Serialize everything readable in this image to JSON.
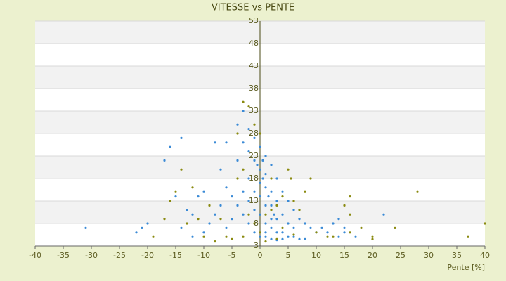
{
  "chart_data": {
    "type": "scatter",
    "title": "VITESSE vs PENTE",
    "x_label": "Pente [%]",
    "xlim": [
      -40,
      40
    ],
    "xticks": [
      -40,
      -35,
      -30,
      -25,
      -20,
      -15,
      -10,
      -5,
      0,
      5,
      10,
      15,
      20,
      25,
      30,
      35,
      40
    ],
    "ylim": [
      3,
      53
    ],
    "yticks": [
      3,
      8,
      13,
      18,
      23,
      28,
      33,
      38,
      43,
      48,
      53
    ],
    "grid": true,
    "series": [
      {
        "name": "Bleu",
        "color": "#3a8ad6",
        "x": [
          0,
          0.5,
          1,
          1.5,
          2,
          2.5,
          3,
          0,
          -1,
          -2,
          -3,
          -2,
          -1,
          0,
          1,
          2,
          3,
          4,
          5,
          6,
          7,
          8,
          0,
          1,
          2,
          3,
          -1,
          -2,
          -3,
          -4,
          -5,
          -6,
          -7,
          -8,
          -9,
          -10,
          -12,
          -13,
          -15,
          -14,
          -16,
          -17,
          -20,
          -22,
          -31,
          -21,
          -14,
          -11,
          -7,
          -4,
          -3,
          -2,
          -1,
          0,
          1,
          2,
          3,
          4,
          5,
          6,
          7,
          8,
          9,
          10,
          11,
          12,
          14,
          15,
          17,
          22,
          14,
          15,
          13,
          -5,
          -6,
          -3,
          4,
          5,
          6,
          1,
          2,
          3,
          -1,
          -2,
          0,
          0.5,
          1,
          -0.5,
          2,
          1,
          4,
          -4,
          -8,
          -6,
          -10,
          -12
        ],
        "values": [
          20,
          18,
          16,
          14,
          12,
          10,
          9,
          14,
          22,
          24,
          26,
          18,
          15,
          10,
          8,
          7,
          6,
          6,
          5,
          5,
          4.5,
          4.5,
          5,
          5,
          4.5,
          4.3,
          6,
          8,
          10,
          12,
          14,
          16,
          12,
          10,
          8,
          6,
          5,
          11,
          14,
          27,
          25,
          22,
          8,
          6,
          7,
          7,
          7,
          14,
          20,
          30,
          33,
          29,
          27,
          25,
          23,
          21,
          18,
          15,
          13,
          11,
          9,
          8,
          7,
          6,
          7,
          6,
          5,
          6,
          5,
          10,
          9,
          7,
          8,
          9,
          7,
          15,
          10,
          8,
          7,
          12,
          15,
          13,
          11,
          13,
          17,
          22,
          19,
          21,
          9,
          6,
          4.5,
          22,
          26,
          26,
          15,
          10
        ]
      },
      {
        "name": "Olive",
        "color": "#8a8a10",
        "x": [
          -3,
          -2,
          -1,
          0,
          -4,
          -15,
          -16,
          -13,
          -10,
          -8,
          -5,
          -3,
          -2,
          -1,
          1,
          2,
          3,
          4,
          5,
          5.5,
          6,
          7,
          8,
          9,
          10,
          12,
          13,
          15,
          16,
          16,
          18,
          20,
          20,
          24,
          28,
          37,
          40,
          16,
          -14,
          -12,
          -9,
          -7,
          -6,
          -4,
          -3,
          0,
          1,
          3,
          6,
          -11,
          -17,
          -19,
          2,
          4
        ],
        "values": [
          35,
          34,
          30,
          28,
          28,
          15,
          13,
          8,
          5,
          4,
          4.5,
          5,
          10,
          8,
          10,
          11,
          12,
          14,
          20,
          18,
          13,
          11,
          15,
          18,
          6,
          5,
          5,
          12,
          14,
          10,
          7,
          5,
          4.5,
          7,
          15,
          5,
          8,
          6,
          20,
          16,
          12,
          9,
          5,
          18,
          20,
          6,
          4,
          4.5,
          5.5,
          9,
          9,
          5,
          18,
          7
        ]
      }
    ]
  }
}
